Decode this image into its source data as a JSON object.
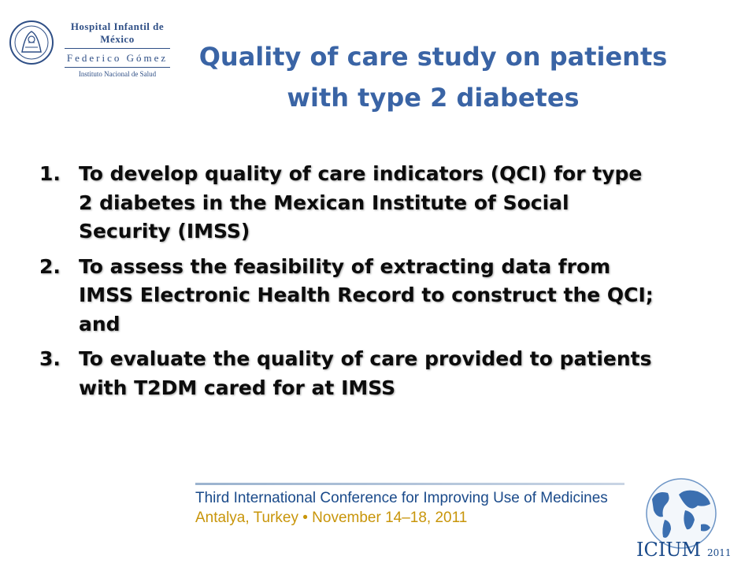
{
  "logo": {
    "name": "Hospital Infantil de México",
    "sub": "Federico Gómez",
    "institute": "Instituto Nacional de Salud"
  },
  "title": {
    "line1": "Quality of care study on patients",
    "line2": "with type 2 diabetes"
  },
  "objectives": [
    {
      "number": "1.",
      "text": "To develop quality of care indicators (QCI) for type 2 diabetes in the Mexican Institute of Social Security (IMSS)"
    },
    {
      "number": "2.",
      "text": "To assess the feasibility of extracting data from IMSS Electronic Health Record to construct the QCI; and"
    },
    {
      "number": "3.",
      "text": "To evaluate the quality of care provided to patients with T2DM cared for at IMSS"
    }
  ],
  "conference": {
    "line1": "Third International Conference for Improving Use of Medicines",
    "line2": "Antalya, Turkey • November 14–18, 2011",
    "logo_text": "ICIUM",
    "logo_year": "2011"
  },
  "colors": {
    "title": "#3a64a5",
    "conference_blue": "#1a4a8a",
    "conference_gold": "#c8950a"
  }
}
